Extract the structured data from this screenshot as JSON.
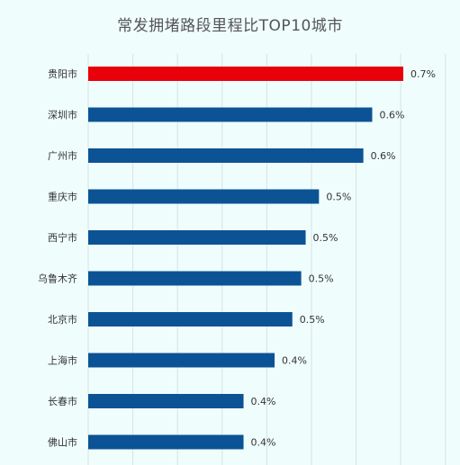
{
  "chart_data": {
    "type": "bar",
    "orientation": "horizontal",
    "title": "常发拥堵路段里程比TOP10城市",
    "categories": [
      "贵阳市",
      "深圳市",
      "广州市",
      "重庆市",
      "西宁市",
      "乌鲁木齐",
      "北京市",
      "上海市",
      "长春市",
      "佛山市"
    ],
    "values": [
      0.71,
      0.64,
      0.62,
      0.52,
      0.49,
      0.48,
      0.46,
      0.42,
      0.35,
      0.35
    ],
    "value_labels": [
      "0.7%",
      "0.6%",
      "0.6%",
      "0.5%",
      "0.5%",
      "0.5%",
      "0.5%",
      "0.4%",
      "0.4%",
      "0.4%"
    ],
    "xlim": [
      0,
      0.8
    ],
    "grid": true,
    "colors": {
      "highlight": "#e8000b",
      "bar": "#0b5394",
      "grid": "#d7e3e3"
    },
    "highlight_index": 0
  }
}
